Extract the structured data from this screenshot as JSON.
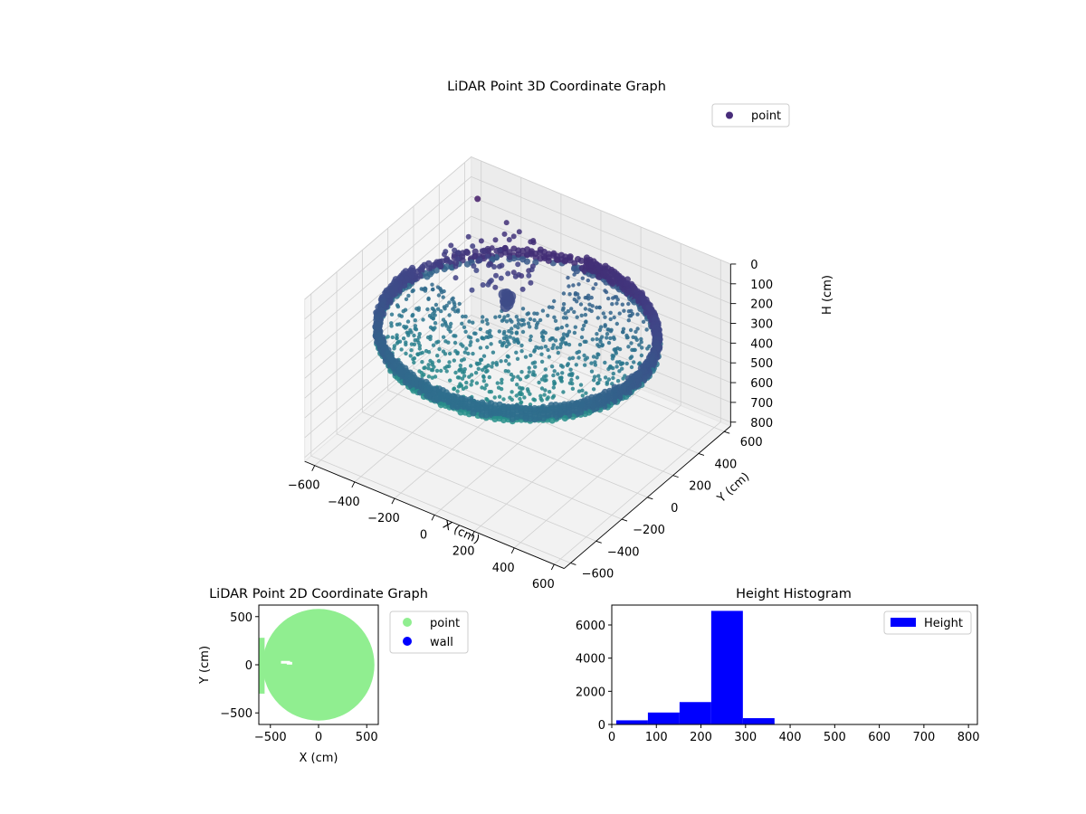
{
  "chart_data": [
    {
      "type": "scatter3d",
      "title": "LiDAR Point 3D Coordinate Graph",
      "xlabel": "X (cm)",
      "ylabel": "Y (cm)",
      "zlabel": "H (cm)",
      "xlim": [
        -650,
        650
      ],
      "ylim": [
        -650,
        650
      ],
      "zlim": [
        0,
        820
      ],
      "z_inverted": true,
      "xticks": [
        "−600",
        "−400",
        "−200",
        "0",
        "200",
        "400",
        "600"
      ],
      "yticks": [
        "−600",
        "−400",
        "−200",
        "0",
        "200",
        "400",
        "600"
      ],
      "zticks": [
        "0",
        "100",
        "200",
        "300",
        "400",
        "500",
        "600",
        "700",
        "800"
      ],
      "legend": {
        "placement": "top-right",
        "entries": [
          "point"
        ]
      },
      "colormap": "viridis",
      "legend_color": "#472c7a",
      "grid": true,
      "shape": "ring wall of radius ~600 cm spanning heights ~230–300 cm, with interior floor points near 300 cm and an open sector toward the back-left"
    },
    {
      "type": "scatter",
      "title": "LiDAR Point 2D Coordinate Graph",
      "xlabel": "X (cm)",
      "ylabel": "Y (cm)",
      "xlim": [
        -620,
        620
      ],
      "ylim": [
        -620,
        620
      ],
      "xticks": [
        "−500",
        "0",
        "500"
      ],
      "yticks": [
        "−500",
        "0",
        "500"
      ],
      "series": [
        {
          "name": "point",
          "color": "#90ee90"
        },
        {
          "name": "wall",
          "color": "#0000ff"
        }
      ],
      "legend": {
        "placement": "outside-right"
      },
      "shape": "filled disc of radius ~580 cm"
    },
    {
      "type": "bar",
      "title": "Height Histogram",
      "xlim": [
        0,
        820
      ],
      "ylim": [
        0,
        7200
      ],
      "xticks": [
        "0",
        "100",
        "200",
        "300",
        "400",
        "500",
        "600",
        "700",
        "800"
      ],
      "yticks": [
        "0",
        "2000",
        "4000",
        "6000"
      ],
      "bins": [
        {
          "from": 10,
          "to": 81,
          "count": 250
        },
        {
          "from": 81,
          "to": 152,
          "count": 720
        },
        {
          "from": 152,
          "to": 223,
          "count": 1350
        },
        {
          "from": 223,
          "to": 294,
          "count": 6850
        },
        {
          "from": 294,
          "to": 365,
          "count": 380
        },
        {
          "from": 365,
          "to": 436,
          "count": 0
        },
        {
          "from": 436,
          "to": 507,
          "count": 0
        },
        {
          "from": 507,
          "to": 578,
          "count": 0
        },
        {
          "from": 578,
          "to": 649,
          "count": 0
        },
        {
          "from": 649,
          "to": 720,
          "count": 0
        },
        {
          "from": 720,
          "to": 791,
          "count": 5
        }
      ],
      "series": [
        {
          "name": "Height",
          "color": "#0000ff"
        }
      ],
      "legend": {
        "placement": "top-right"
      }
    }
  ]
}
